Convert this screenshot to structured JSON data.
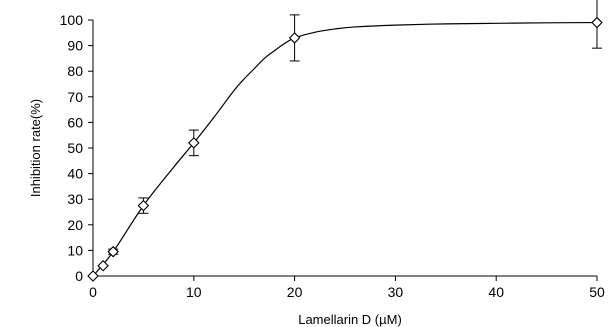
{
  "chart_data": {
    "type": "scatter",
    "title": "",
    "xlabel": "Lamellarin D (µM)",
    "ylabel": "Inhibition rate(%)",
    "xlim": [
      0,
      50
    ],
    "ylim": [
      0,
      100
    ],
    "xticks": [
      0,
      10,
      20,
      30,
      40,
      50
    ],
    "yticks": [
      0,
      10,
      20,
      30,
      40,
      50,
      60,
      70,
      80,
      90,
      100
    ],
    "grid": false,
    "legend": "none",
    "marker": "open-diamond",
    "series": [
      {
        "points": [
          {
            "x": 0,
            "y": 0,
            "err": 0
          },
          {
            "x": 1,
            "y": 4,
            "err": 0
          },
          {
            "x": 2,
            "y": 9.5,
            "err": 1
          },
          {
            "x": 5,
            "y": 27.5,
            "err": 3
          },
          {
            "x": 10,
            "y": 52,
            "err": 5
          },
          {
            "x": 20,
            "y": 93,
            "err": 9
          },
          {
            "x": 50,
            "y": 99,
            "err": 10
          }
        ]
      }
    ],
    "curve": [
      [
        0,
        0
      ],
      [
        2,
        9.5
      ],
      [
        5,
        27.5
      ],
      [
        8,
        42.5
      ],
      [
        10,
        52
      ],
      [
        12,
        62
      ],
      [
        14,
        72.5
      ],
      [
        15,
        77
      ],
      [
        16,
        81
      ],
      [
        17,
        85
      ],
      [
        18,
        88
      ],
      [
        19,
        90.8
      ],
      [
        20,
        93
      ],
      [
        22,
        95.2
      ],
      [
        24,
        96.5
      ],
      [
        26,
        97.3
      ],
      [
        30,
        98
      ],
      [
        35,
        98.5
      ],
      [
        40,
        98.7
      ],
      [
        45,
        98.9
      ],
      [
        50,
        99
      ]
    ]
  }
}
